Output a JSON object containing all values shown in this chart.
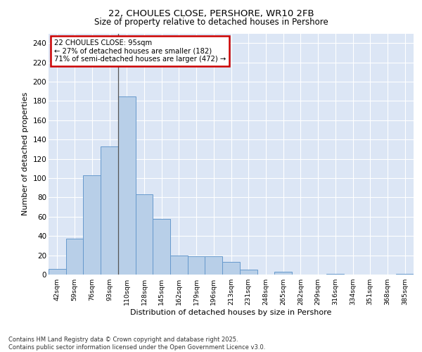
{
  "title_line1": "22, CHOULES CLOSE, PERSHORE, WR10 2FB",
  "title_line2": "Size of property relative to detached houses in Pershore",
  "xlabel": "Distribution of detached houses by size in Pershore",
  "ylabel": "Number of detached properties",
  "categories": [
    "42sqm",
    "59sqm",
    "76sqm",
    "93sqm",
    "110sqm",
    "128sqm",
    "145sqm",
    "162sqm",
    "179sqm",
    "196sqm",
    "213sqm",
    "231sqm",
    "248sqm",
    "265sqm",
    "282sqm",
    "299sqm",
    "316sqm",
    "334sqm",
    "351sqm",
    "368sqm",
    "385sqm"
  ],
  "values": [
    6,
    37,
    103,
    133,
    185,
    83,
    58,
    20,
    19,
    19,
    13,
    5,
    0,
    3,
    0,
    0,
    1,
    0,
    0,
    0,
    1
  ],
  "bar_color": "#b8cfe8",
  "bar_edge_color": "#6699cc",
  "annotation_text": "22 CHOULES CLOSE: 95sqm\n← 27% of detached houses are smaller (182)\n71% of semi-detached houses are larger (472) →",
  "annotation_box_color": "#ffffff",
  "annotation_box_edge_color": "#cc0000",
  "ylim": [
    0,
    250
  ],
  "yticks": [
    0,
    20,
    40,
    60,
    80,
    100,
    120,
    140,
    160,
    180,
    200,
    220,
    240
  ],
  "background_color": "#dce6f5",
  "grid_color": "#ffffff",
  "footer_text": "Contains HM Land Registry data © Crown copyright and database right 2025.\nContains public sector information licensed under the Open Government Licence v3.0.",
  "subject_line_color": "#555555",
  "fig_bg_color": "#ffffff"
}
